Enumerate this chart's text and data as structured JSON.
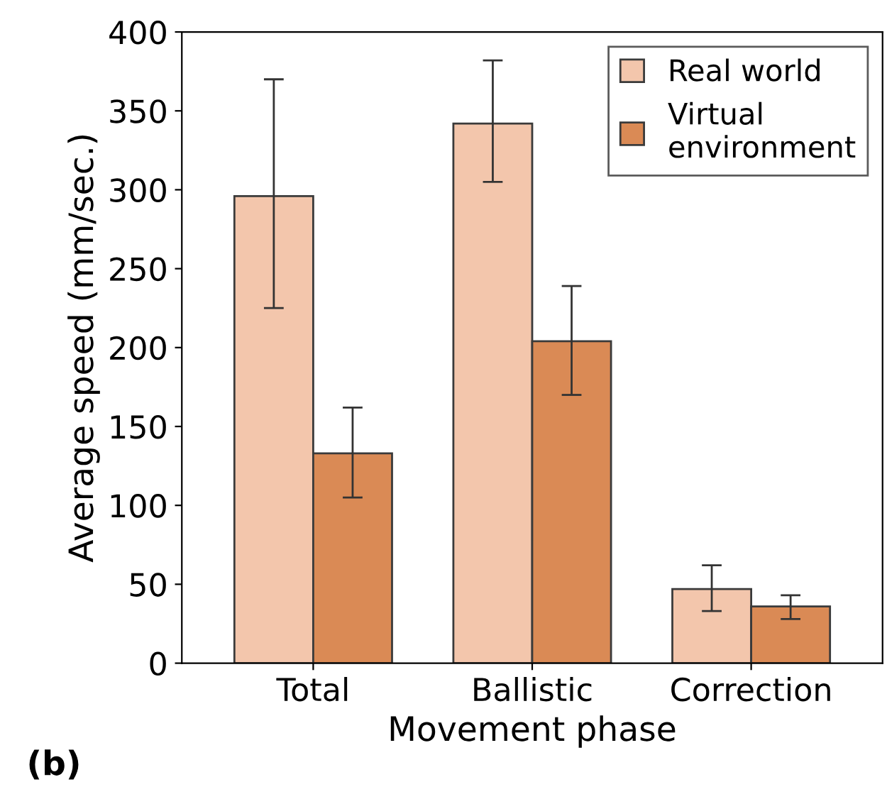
{
  "chart_data": {
    "type": "bar",
    "xlabel": "Movement phase",
    "ylabel": "Average speed (mm/sec.)",
    "categories": [
      "Total",
      "Ballistic",
      "Correction"
    ],
    "series": [
      {
        "name": "Real world",
        "color": "#f3c6ac",
        "values": [
          296,
          342,
          47
        ],
        "errors": [
          [
            225,
            370
          ],
          [
            305,
            382
          ],
          [
            33,
            62
          ]
        ]
      },
      {
        "name": "Virtual\nenvironment",
        "color": "#da8a55",
        "values": [
          133,
          204,
          36
        ],
        "errors": [
          [
            105,
            162
          ],
          [
            170,
            239
          ],
          [
            28,
            43
          ]
        ]
      }
    ],
    "ylim": [
      0,
      400
    ],
    "yticks": [
      0,
      50,
      100,
      150,
      200,
      250,
      300,
      350,
      400
    ],
    "grid": false,
    "legend": "top right",
    "annotations": [
      "(b)"
    ]
  }
}
